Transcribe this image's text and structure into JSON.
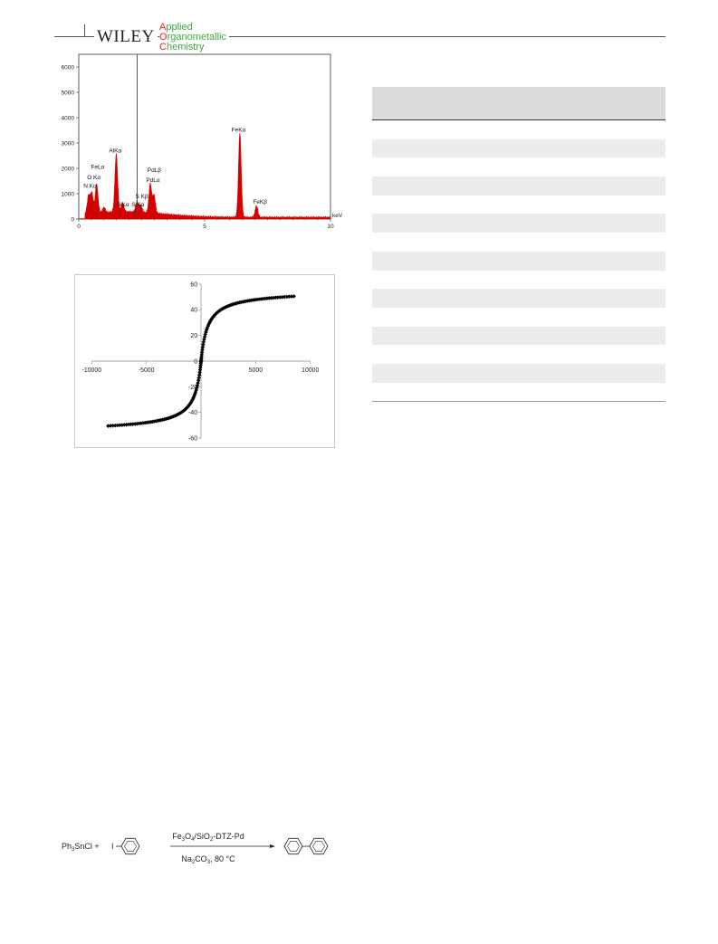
{
  "header": {
    "publisher": "WILEY",
    "journal_lines": [
      {
        "initial": "A",
        "rest": "pplied"
      },
      {
        "initial": "O",
        "rest": "rganometallic"
      },
      {
        "initial": "C",
        "rest": "hemistry"
      }
    ]
  },
  "chart_data": [
    {
      "type": "area",
      "xlabel": "keV",
      "xlim": [
        0,
        10
      ],
      "ylim": [
        0,
        6500
      ],
      "x_ticks": [
        0,
        5,
        10
      ],
      "y_ticks": [
        0,
        1000,
        2000,
        3000,
        4000,
        5000,
        6000
      ],
      "color": "#d40000",
      "peaks": [
        {
          "x": 0.39,
          "y": 700
        },
        {
          "x": 0.52,
          "y": 800
        },
        {
          "x": 0.71,
          "y": 1150
        },
        {
          "x": 1.0,
          "y": 200
        },
        {
          "x": 1.49,
          "y": 2300
        },
        {
          "x": 1.74,
          "y": 350
        },
        {
          "x": 2.31,
          "y": 420
        },
        {
          "x": 2.46,
          "y": 280
        },
        {
          "x": 2.84,
          "y": 1150
        },
        {
          "x": 2.99,
          "y": 700
        },
        {
          "x": 6.4,
          "y": 3350
        },
        {
          "x": 7.06,
          "y": 450
        }
      ],
      "annotations": [
        {
          "text": "FeLα",
          "x": 0.75,
          "y": 1980
        },
        {
          "text": "O Kα",
          "x": 0.6,
          "y": 1580
        },
        {
          "text": "N Kα",
          "x": 0.45,
          "y": 1230
        },
        {
          "text": "AlKα",
          "x": 1.45,
          "y": 2620
        },
        {
          "text": "SiKα",
          "x": 1.75,
          "y": 500
        },
        {
          "text": "S Kα",
          "x": 2.35,
          "y": 500
        },
        {
          "text": "S Kβ",
          "x": 2.5,
          "y": 820
        },
        {
          "text": "PdLβ",
          "x": 3.0,
          "y": 1860
        },
        {
          "text": "PdLα",
          "x": 2.95,
          "y": 1460
        },
        {
          "text": "FeKα",
          "x": 6.35,
          "y": 3450
        },
        {
          "text": "FeKβ",
          "x": 7.2,
          "y": 600
        }
      ],
      "cursor_x": 2.32
    },
    {
      "type": "scatter",
      "xlim": [
        -10000,
        10000
      ],
      "ylim": [
        -60,
        60
      ],
      "x_ticks": [
        -10000,
        -5000,
        0,
        5000,
        10000
      ],
      "y_ticks": [
        -60,
        -40,
        -20,
        0,
        20,
        40,
        60
      ],
      "marker": "diamond",
      "color": "#000000",
      "saturation": 53,
      "h_half": 600,
      "field_range": [
        -8500,
        8500
      ],
      "point_count": 140
    }
  ],
  "scheme": {
    "reactant": "Ph3SnCl +",
    "iodo_label": "I",
    "catalyst": "Fe3O4/SiO2-DTZ-Pd",
    "conditions": "Na2CO3, 80 °C"
  },
  "table": {
    "rows": 15
  }
}
